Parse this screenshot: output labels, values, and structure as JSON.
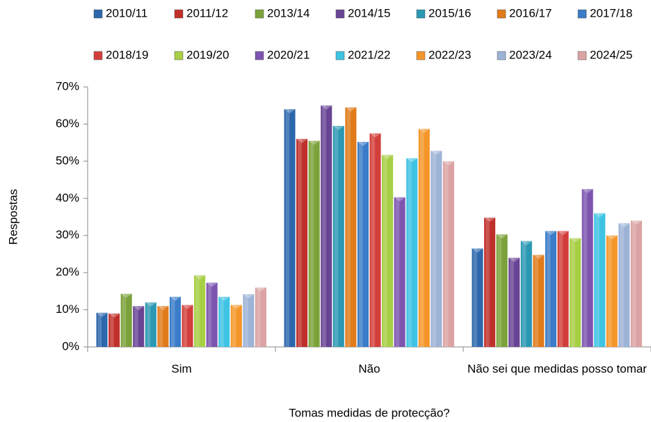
{
  "chart_data": {
    "type": "bar",
    "xlabel": "Tomas medidas de protecção?",
    "ylabel": "Respostas",
    "categories": [
      "Sim",
      "Não",
      "Não sei que medidas posso tomar"
    ],
    "ylim": [
      0,
      70
    ],
    "yticks": [
      {
        "value": 0,
        "label": "0%"
      },
      {
        "value": 10,
        "label": "10%"
      },
      {
        "value": 20,
        "label": "20%"
      },
      {
        "value": 30,
        "label": "30%"
      },
      {
        "value": 40,
        "label": "40%"
      },
      {
        "value": 50,
        "label": "50%"
      },
      {
        "value": 60,
        "label": "60%"
      },
      {
        "value": 70,
        "label": "70%"
      }
    ],
    "grid": false,
    "legend": "top",
    "series": [
      {
        "name": "2010/11",
        "color": "#2c67ad",
        "values": [
          9.2,
          64,
          26.5
        ]
      },
      {
        "name": "2011/12",
        "color": "#c0302b",
        "values": [
          9,
          56,
          34.8
        ]
      },
      {
        "name": "2013/14",
        "color": "#7ba23a",
        "values": [
          14.3,
          55.5,
          30.3
        ]
      },
      {
        "name": "2014/15",
        "color": "#694494",
        "values": [
          11,
          65,
          24
        ]
      },
      {
        "name": "2015/16",
        "color": "#2b98b3",
        "values": [
          12,
          59.5,
          28.5
        ]
      },
      {
        "name": "2016/17",
        "color": "#e07a1a",
        "values": [
          11,
          64.5,
          24.8
        ]
      },
      {
        "name": "2017/18",
        "color": "#3a7cc7",
        "values": [
          13.5,
          55.2,
          31.2
        ]
      },
      {
        "name": "2018/19",
        "color": "#d23f3b",
        "values": [
          11.3,
          57.5,
          31.2
        ]
      },
      {
        "name": "2019/20",
        "color": "#a7cf44",
        "values": [
          19.3,
          51.7,
          29.3
        ]
      },
      {
        "name": "2020/21",
        "color": "#7d55b0",
        "values": [
          17.3,
          40.3,
          42.5
        ]
      },
      {
        "name": "2021/22",
        "color": "#3ec3e3",
        "values": [
          13.5,
          50.8,
          36
        ]
      },
      {
        "name": "2022/23",
        "color": "#f5962a",
        "values": [
          11.3,
          58.7,
          30
        ]
      },
      {
        "name": "2023/24",
        "color": "#9db3d6",
        "values": [
          14.2,
          52.8,
          33.3
        ]
      },
      {
        "name": "2024/25",
        "color": "#dba3a3",
        "values": [
          16,
          50,
          34
        ]
      }
    ]
  }
}
